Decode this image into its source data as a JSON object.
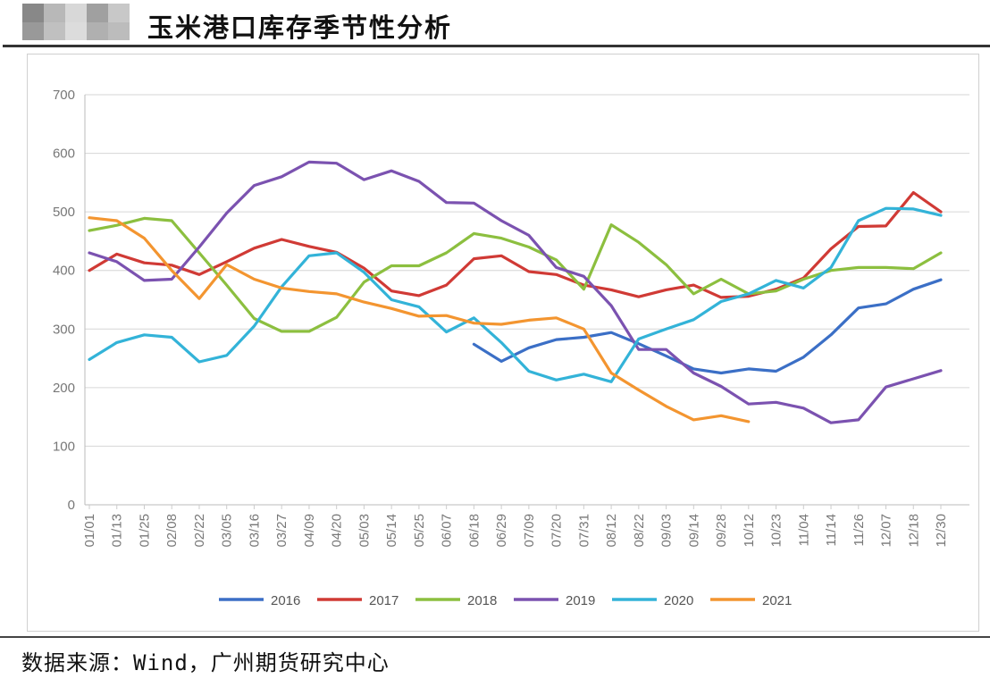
{
  "header": {
    "title": "玉米港口库存季节性分析"
  },
  "footer": {
    "source": "数据来源：Wind，广州期货研究中心"
  },
  "chart_data": {
    "type": "line",
    "title": "",
    "xlabel": "",
    "ylabel": "",
    "ylim": [
      0,
      700
    ],
    "yticks": [
      0,
      100,
      200,
      300,
      400,
      500,
      600,
      700
    ],
    "grid": true,
    "legend_position": "bottom",
    "categories": [
      "01/01",
      "01/13",
      "01/25",
      "02/08",
      "02/22",
      "03/05",
      "03/16",
      "03/27",
      "04/09",
      "04/20",
      "05/03",
      "05/14",
      "05/25",
      "06/07",
      "06/18",
      "06/29",
      "07/09",
      "07/20",
      "07/31",
      "08/12",
      "08/22",
      "09/03",
      "09/14",
      "09/28",
      "10/12",
      "10/23",
      "11/04",
      "11/14",
      "11/26",
      "12/07",
      "12/18",
      "12/30"
    ],
    "series": [
      {
        "name": "2016",
        "color": "#3b6fc6",
        "values": [
          null,
          null,
          null,
          null,
          null,
          null,
          null,
          null,
          null,
          null,
          null,
          null,
          null,
          null,
          274,
          245,
          268,
          282,
          286,
          294,
          275,
          254,
          232,
          225,
          232,
          228,
          252,
          290,
          336,
          343,
          368,
          384
        ]
      },
      {
        "name": "2017",
        "color": "#d03a35",
        "values": [
          400,
          428,
          413,
          409,
          393,
          415,
          438,
          453,
          441,
          431,
          404,
          365,
          357,
          375,
          420,
          425,
          398,
          393,
          375,
          367,
          355,
          367,
          375,
          354,
          356,
          368,
          387,
          437,
          475,
          476,
          533,
          500
        ]
      },
      {
        "name": "2018",
        "color": "#8cbf3f",
        "values": [
          468,
          477,
          489,
          485,
          430,
          375,
          318,
          296,
          296,
          320,
          380,
          408,
          408,
          430,
          463,
          455,
          440,
          418,
          368,
          478,
          448,
          410,
          360,
          385,
          360,
          365,
          385,
          400,
          405,
          405,
          403,
          430
        ]
      },
      {
        "name": "2019",
        "color": "#7b52b0",
        "values": [
          430,
          415,
          383,
          385,
          440,
          498,
          545,
          560,
          585,
          583,
          555,
          570,
          552,
          516,
          515,
          485,
          460,
          405,
          390,
          340,
          265,
          265,
          225,
          202,
          172,
          175,
          165,
          140,
          145,
          201,
          215,
          229
        ]
      },
      {
        "name": "2020",
        "color": "#33b3d8",
        "values": [
          248,
          277,
          290,
          286,
          244,
          255,
          305,
          372,
          425,
          430,
          397,
          350,
          338,
          295,
          319,
          277,
          228,
          213,
          223,
          210,
          283,
          300,
          316,
          347,
          360,
          383,
          370,
          405,
          485,
          506,
          505,
          494
        ]
      },
      {
        "name": "2021",
        "color": "#f39530",
        "values": [
          490,
          485,
          455,
          400,
          352,
          410,
          385,
          370,
          364,
          360,
          346,
          335,
          322,
          323,
          310,
          308,
          315,
          319,
          300,
          225,
          196,
          168,
          145,
          152,
          142,
          null,
          null,
          null,
          null,
          null,
          null,
          null
        ]
      }
    ]
  }
}
